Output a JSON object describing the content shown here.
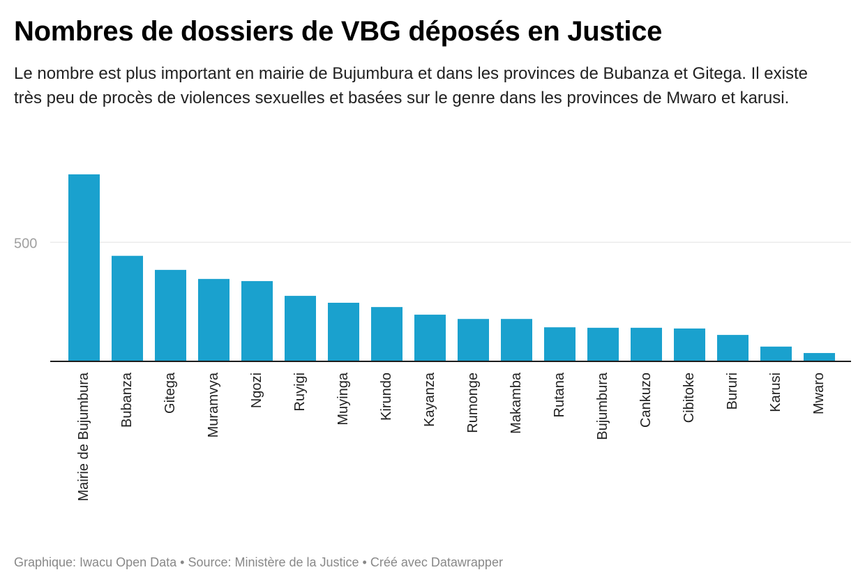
{
  "header": {
    "title": "Nombres de dossiers de VBG déposés en Justice",
    "subtitle": "Le nombre est plus important en mairie de Bujumbura et dans les provinces de Bubanza et Gitega. Il existe très peu de procès de violences sexuelles et basées sur le genre dans les provinces de Mwaro et karusi."
  },
  "footer": {
    "text": "Graphique: Iwacu Open Data • Source: Ministère de la Justice • Créé avec Datawrapper"
  },
  "chart_data": {
    "type": "bar",
    "title": "Nombres de dossiers de VBG déposés en Justice",
    "xlabel": "",
    "ylabel": "",
    "categories": [
      "Mairie de Bujumbura",
      "Bubanza",
      "Gitega",
      "Muramvya",
      "Ngozi",
      "Ruyigi",
      "Muyinga",
      "Kirundo",
      "Kayanza",
      "Rumonge",
      "Makamba",
      "Rutana",
      "Bujumbura",
      "Cankuzo",
      "Cibitoke",
      "Bururi",
      "Karusi",
      "Mwaro"
    ],
    "values": [
      785,
      443,
      384,
      346,
      337,
      275,
      246,
      228,
      196,
      178,
      178,
      143,
      141,
      141,
      138,
      111,
      62,
      35
    ],
    "ylim": [
      0,
      800
    ],
    "yticks": [
      500
    ],
    "grid": true,
    "legend": "none",
    "colors": {
      "bar": "#1aa1ce",
      "grid": "#e2e2e2",
      "axis": "#1d1d1d",
      "tick_label": "#a0a0a0",
      "category_label": "#222222"
    }
  }
}
